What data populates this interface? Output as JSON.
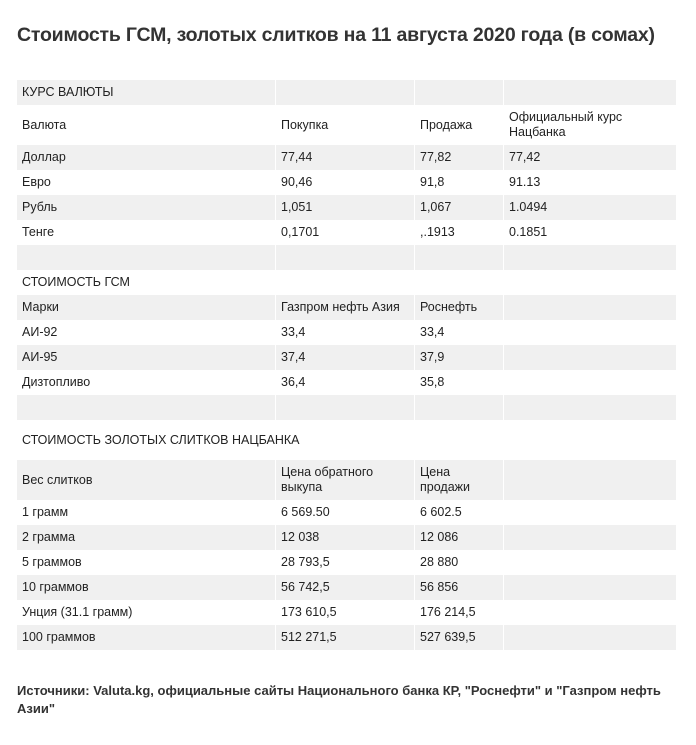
{
  "title": "Стоимость ГСМ, золотых слитков на 11 августа 2020 года (в сомах)",
  "table": {
    "rows": [
      {
        "h": 25,
        "g": true,
        "cells": [
          "КУРС ВАЛЮТЫ",
          "",
          "",
          ""
        ]
      },
      {
        "h": 40,
        "g": false,
        "cells": [
          "Валюта",
          "Покупка",
          "Продажа",
          "Официальный курс Нацбанка"
        ]
      },
      {
        "h": 25,
        "g": true,
        "cells": [
          "Доллар",
          "77,44",
          "77,82",
          "77,42"
        ]
      },
      {
        "h": 25,
        "g": false,
        "cells": [
          "Евро",
          "90,46",
          "91,8",
          "91.13"
        ]
      },
      {
        "h": 25,
        "g": true,
        "cells": [
          "Рубль",
          "1,051",
          "1,067",
          "1.0494"
        ]
      },
      {
        "h": 25,
        "g": false,
        "cells": [
          "Тенге",
          "0,1701",
          ",.1913",
          "0.1851"
        ]
      },
      {
        "h": 25,
        "g": true,
        "cells": [
          "",
          "",
          "",
          ""
        ]
      },
      {
        "h": 25,
        "g": false,
        "cells": [
          "СТОИМОСТЬ ГСМ",
          "",
          "",
          ""
        ]
      },
      {
        "h": 25,
        "g": true,
        "cells": [
          "Марки",
          "Газпром нефть Азия",
          "Роснефть",
          ""
        ]
      },
      {
        "h": 25,
        "g": false,
        "cells": [
          "АИ-92",
          "33,4",
          "33,4",
          ""
        ]
      },
      {
        "h": 25,
        "g": true,
        "cells": [
          "АИ-95",
          "37,4",
          "37,9",
          ""
        ]
      },
      {
        "h": 25,
        "g": false,
        "cells": [
          "Дизтопливо",
          "36,4",
          "35,8",
          ""
        ]
      },
      {
        "h": 25,
        "g": true,
        "cells": [
          "",
          "",
          "",
          ""
        ]
      },
      {
        "h": 40,
        "g": false,
        "cells": [
          "СТОИМОСТЬ ЗОЛОТЫХ СЛИТКОВ НАЦБАНКА",
          "",
          "",
          ""
        ]
      },
      {
        "h": 40,
        "g": true,
        "cells": [
          "Вес слитков",
          "Цена обратного выкупа",
          "Цена продажи",
          ""
        ]
      },
      {
        "h": 25,
        "g": false,
        "cells": [
          "1 грамм",
          "6 569.50",
          "6 602.5",
          ""
        ]
      },
      {
        "h": 25,
        "g": true,
        "cells": [
          "2 грамма",
          "12 038",
          "12 086",
          ""
        ]
      },
      {
        "h": 25,
        "g": false,
        "cells": [
          "5 граммов",
          "28 793,5",
          "28 880",
          ""
        ]
      },
      {
        "h": 25,
        "g": true,
        "cells": [
          "10 граммов",
          "56 742,5",
          "56 856",
          ""
        ]
      },
      {
        "h": 25,
        "g": false,
        "cells": [
          "Унция (31.1 грамм)",
          "173 610,5",
          "176 214,5",
          ""
        ]
      },
      {
        "h": 25,
        "g": true,
        "cells": [
          "100 граммов",
          "512 271,5",
          "527 639,5",
          ""
        ]
      }
    ]
  },
  "source": "Источники: Valuta.kg, официальные сайты Национального банка КР, \"Роснефти\" и \"Газпром нефть Азии\""
}
